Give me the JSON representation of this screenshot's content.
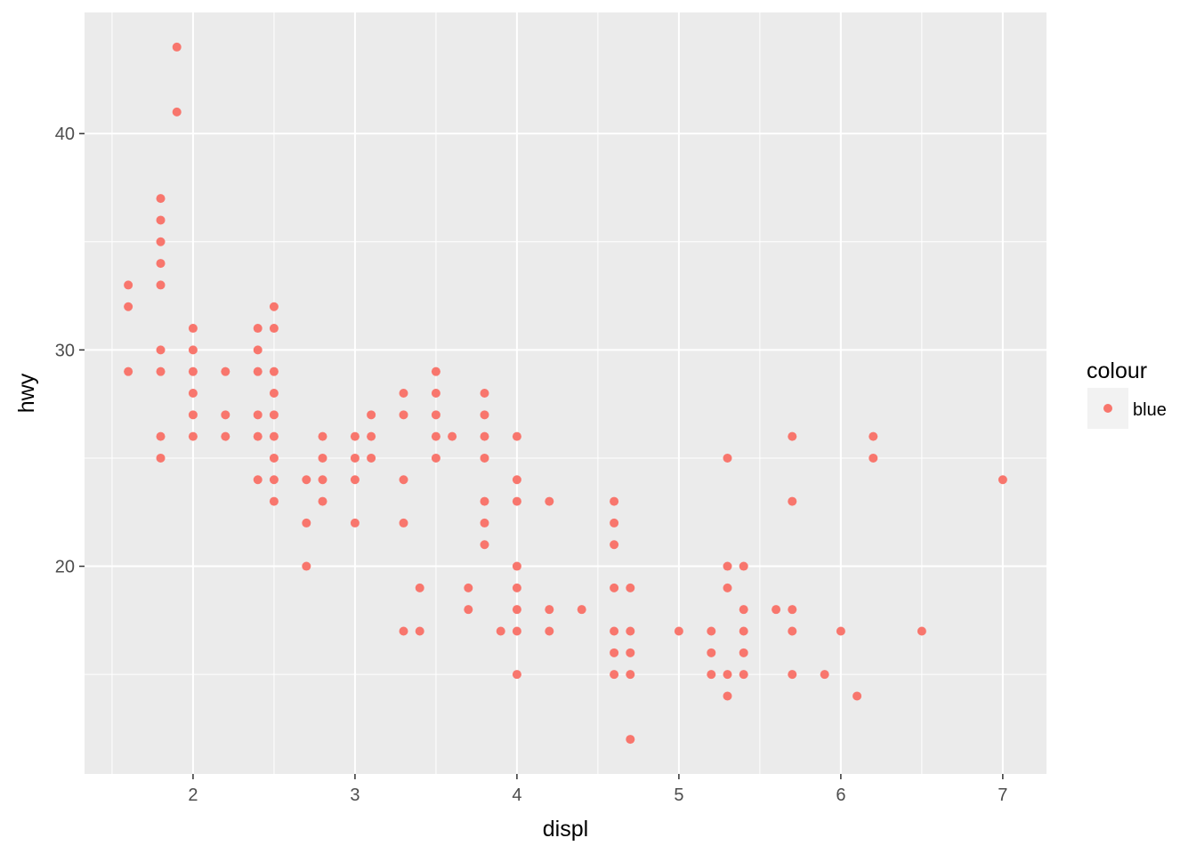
{
  "chart_data": {
    "type": "scatter",
    "title": "",
    "xlabel": "displ",
    "ylabel": "hwy",
    "xlim": [
      1.33,
      7.27
    ],
    "ylim": [
      10.4,
      45.6
    ],
    "x_ticks": [
      2,
      3,
      4,
      5,
      6,
      7
    ],
    "y_ticks": [
      20,
      30,
      40
    ],
    "x_minor_ticks": [
      1.5,
      2.5,
      3.5,
      4.5,
      5.5,
      6.5
    ],
    "y_minor_ticks": [
      15,
      25,
      35
    ],
    "grid": true,
    "legend": {
      "title": "colour",
      "position": "right",
      "entries": [
        {
          "label": "blue",
          "color": "#F8766D"
        }
      ]
    },
    "colors": {
      "panel": "#EBEBEB",
      "grid": "#FFFFFF",
      "point": "#F8766D",
      "legend_key": "#F2F2F2"
    },
    "series": [
      {
        "name": "blue",
        "points": [
          [
            1.6,
            33
          ],
          [
            1.6,
            32
          ],
          [
            1.6,
            29
          ],
          [
            1.8,
            37
          ],
          [
            1.8,
            36
          ],
          [
            1.8,
            35
          ],
          [
            1.8,
            34
          ],
          [
            1.8,
            33
          ],
          [
            1.8,
            30
          ],
          [
            1.8,
            29
          ],
          [
            1.8,
            26
          ],
          [
            1.8,
            25
          ],
          [
            1.9,
            44
          ],
          [
            1.9,
            41
          ],
          [
            2.0,
            31
          ],
          [
            2.0,
            30
          ],
          [
            2.0,
            29
          ],
          [
            2.0,
            28
          ],
          [
            2.0,
            27
          ],
          [
            2.0,
            26
          ],
          [
            2.2,
            29
          ],
          [
            2.2,
            27
          ],
          [
            2.2,
            26
          ],
          [
            2.4,
            31
          ],
          [
            2.4,
            30
          ],
          [
            2.4,
            29
          ],
          [
            2.4,
            27
          ],
          [
            2.4,
            26
          ],
          [
            2.4,
            24
          ],
          [
            2.5,
            32
          ],
          [
            2.5,
            31
          ],
          [
            2.5,
            29
          ],
          [
            2.5,
            28
          ],
          [
            2.5,
            27
          ],
          [
            2.5,
            26
          ],
          [
            2.5,
            25
          ],
          [
            2.5,
            24
          ],
          [
            2.5,
            23
          ],
          [
            2.7,
            24
          ],
          [
            2.7,
            22
          ],
          [
            2.7,
            20
          ],
          [
            2.8,
            26
          ],
          [
            2.8,
            25
          ],
          [
            2.8,
            24
          ],
          [
            2.8,
            23
          ],
          [
            3.0,
            26
          ],
          [
            3.0,
            25
          ],
          [
            3.0,
            24
          ],
          [
            3.0,
            22
          ],
          [
            3.1,
            27
          ],
          [
            3.1,
            26
          ],
          [
            3.1,
            25
          ],
          [
            3.3,
            28
          ],
          [
            3.3,
            27
          ],
          [
            3.3,
            24
          ],
          [
            3.3,
            22
          ],
          [
            3.3,
            17
          ],
          [
            3.4,
            19
          ],
          [
            3.4,
            17
          ],
          [
            3.5,
            29
          ],
          [
            3.5,
            28
          ],
          [
            3.5,
            27
          ],
          [
            3.5,
            26
          ],
          [
            3.5,
            25
          ],
          [
            3.6,
            26
          ],
          [
            3.7,
            19
          ],
          [
            3.7,
            18
          ],
          [
            3.8,
            28
          ],
          [
            3.8,
            27
          ],
          [
            3.8,
            26
          ],
          [
            3.8,
            25
          ],
          [
            3.8,
            23
          ],
          [
            3.8,
            22
          ],
          [
            3.8,
            21
          ],
          [
            3.9,
            17
          ],
          [
            4.0,
            26
          ],
          [
            4.0,
            24
          ],
          [
            4.0,
            23
          ],
          [
            4.0,
            20
          ],
          [
            4.0,
            19
          ],
          [
            4.0,
            18
          ],
          [
            4.0,
            17
          ],
          [
            4.0,
            15
          ],
          [
            4.2,
            23
          ],
          [
            4.2,
            18
          ],
          [
            4.2,
            17
          ],
          [
            4.4,
            18
          ],
          [
            4.6,
            23
          ],
          [
            4.6,
            22
          ],
          [
            4.6,
            21
          ],
          [
            4.6,
            19
          ],
          [
            4.6,
            17
          ],
          [
            4.6,
            16
          ],
          [
            4.6,
            15
          ],
          [
            4.7,
            19
          ],
          [
            4.7,
            17
          ],
          [
            4.7,
            16
          ],
          [
            4.7,
            15
          ],
          [
            4.7,
            12
          ],
          [
            5.0,
            17
          ],
          [
            5.2,
            17
          ],
          [
            5.2,
            16
          ],
          [
            5.2,
            15
          ],
          [
            5.3,
            25
          ],
          [
            5.3,
            20
          ],
          [
            5.3,
            19
          ],
          [
            5.3,
            15
          ],
          [
            5.3,
            14
          ],
          [
            5.4,
            20
          ],
          [
            5.4,
            18
          ],
          [
            5.4,
            17
          ],
          [
            5.4,
            16
          ],
          [
            5.4,
            15
          ],
          [
            5.6,
            18
          ],
          [
            5.7,
            26
          ],
          [
            5.7,
            23
          ],
          [
            5.7,
            18
          ],
          [
            5.7,
            17
          ],
          [
            5.7,
            15
          ],
          [
            5.9,
            15
          ],
          [
            6.0,
            17
          ],
          [
            6.1,
            14
          ],
          [
            6.2,
            26
          ],
          [
            6.2,
            25
          ],
          [
            6.5,
            17
          ],
          [
            7.0,
            24
          ]
        ]
      }
    ]
  }
}
